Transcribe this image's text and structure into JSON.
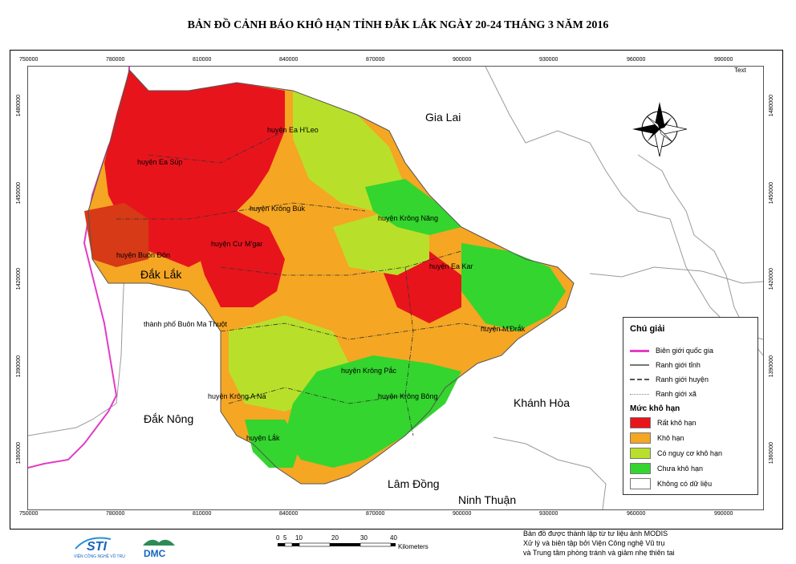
{
  "title": "BẢN ĐỒ CẢNH BÁO KHÔ HẠN TỈNH ĐẮK LẮK NGÀY 20-24 THÁNG 3 NĂM 2016",
  "axis": {
    "x_ticks": [
      "750000",
      "780000",
      "810000",
      "840000",
      "870000",
      "900000",
      "930000",
      "960000",
      "990000"
    ],
    "y_ticks": [
      "1480000",
      "1450000",
      "1420000",
      "1390000",
      "1360000"
    ]
  },
  "map_text": {
    "corner_text": "Text",
    "neighbors": {
      "gia_lai": "Gia Lai",
      "dak_lak": "Đắk Lắk",
      "dak_nong": "Đắk Nông",
      "khanh_hoa": "Khánh Hòa",
      "lam_dong": "Lâm Đồng",
      "ninh_thuan": "Ninh Thuận"
    },
    "districts": {
      "ea_hleo": "huyện Ea H'Leo",
      "ea_sup": "huyện Ea Súp",
      "krong_buk": "huyện Krông Búk",
      "krong_nang": "huyện Krông Năng",
      "cu_mgar": "huyện Cư M'gar",
      "buon_don": "huyện Buôn Đôn",
      "ea_kar": "huyện Ea Kar",
      "bmt": "thành phố Buôn Ma Thuột",
      "mdrak": "huyện M'Đrắk",
      "krong_pac": "huyện Krông Pắc",
      "krong_ana": "huyện Krông A Na",
      "krong_bong": "huyện Krông Bông",
      "lak": "huyện Lắk"
    }
  },
  "legend": {
    "title": "Chú giải",
    "boundaries": [
      {
        "label": "Biên giới quốc gia",
        "color": "#e23cc4",
        "style": "solid"
      },
      {
        "label": "Ranh giới tỉnh",
        "color": "#777777",
        "style": "solid"
      },
      {
        "label": "Ranh giới huyện",
        "color": "#555555",
        "style": "dashdot"
      },
      {
        "label": "Ranh giới xã",
        "color": "#888888",
        "style": "dotted"
      }
    ],
    "drought_title": "Mức khô hạn",
    "drought_levels": [
      {
        "label": "Rất khô hạn",
        "color": "#e8141c"
      },
      {
        "label": "Khô hạn",
        "color": "#f5a623"
      },
      {
        "label": "Có nguy cơ khô hạn",
        "color": "#b8e02a"
      },
      {
        "label": "Chưa khô hạn",
        "color": "#34d52e"
      },
      {
        "label": "Không có dữ liệu",
        "color": "#ffffff"
      }
    ]
  },
  "scale": {
    "ticks": [
      "0",
      "5",
      "10",
      "20",
      "30",
      "40"
    ],
    "unit": "Kilometers"
  },
  "footer": {
    "line1": "Bản đồ được thành lập từ tư liệu ảnh MODIS",
    "line2": "Xử lý và biên tập bởi Viện Công nghệ Vũ trụ",
    "line3": "và Trung tâm phòng tránh và giảm nhẹ thiên tai"
  },
  "logos": {
    "sti": "STI",
    "sti_caption": "VIỆN CÔNG NGHỆ VŨ TRỤ",
    "dmc": "DMC"
  },
  "colors": {
    "very_dry": "#e8141c",
    "dry": "#f5a623",
    "risk": "#b8e02a",
    "not_dry": "#34d52e",
    "border_national": "#e23cc4"
  }
}
